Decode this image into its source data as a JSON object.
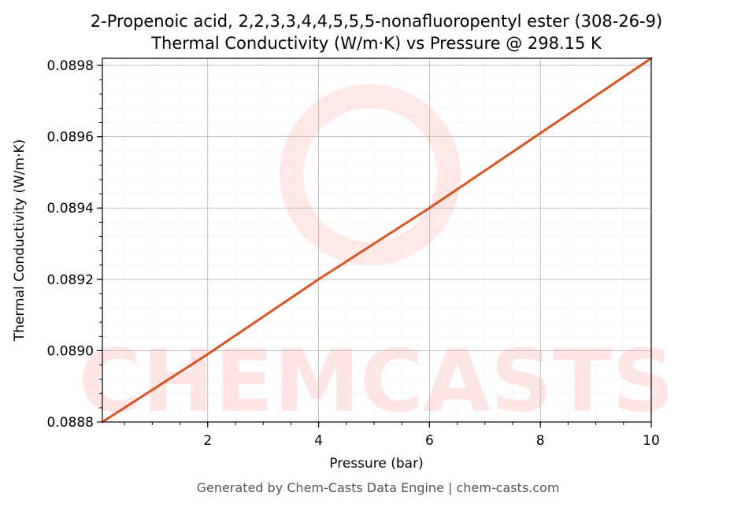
{
  "chart_data": {
    "type": "line",
    "title": "2-Propenoic acid, 2,2,3,3,4,4,5,5,5-nonafluoropentyl ester (308-26-9)",
    "subtitle": "Thermal Conductivity (W/m·K) vs Pressure @ 298.15 K",
    "xlabel": "Pressure (bar)",
    "ylabel": "Thermal Conductivity (W/m·K)",
    "xlim": [
      0.1,
      10
    ],
    "ylim": [
      0.0888,
      0.08982
    ],
    "x_ticks": [
      2,
      4,
      6,
      8,
      10
    ],
    "x_tick_labels": [
      "2",
      "4",
      "6",
      "8",
      "10"
    ],
    "y_ticks": [
      0.0888,
      0.089,
      0.0892,
      0.0894,
      0.0896,
      0.0898
    ],
    "y_tick_labels": [
      "0.0888",
      "0.0890",
      "0.0892",
      "0.0894",
      "0.0896",
      "0.0898"
    ],
    "grid": true,
    "series": [
      {
        "color": "#d9541e",
        "x": [
          0.1,
          2,
          4,
          6,
          8,
          10
        ],
        "y": [
          0.0888,
          0.08899,
          0.0892,
          0.0894,
          0.08961,
          0.08982
        ]
      }
    ],
    "watermark": "CHEMCASTS"
  },
  "footer": "Generated by Chem-Casts Data Engine | chem-casts.com"
}
